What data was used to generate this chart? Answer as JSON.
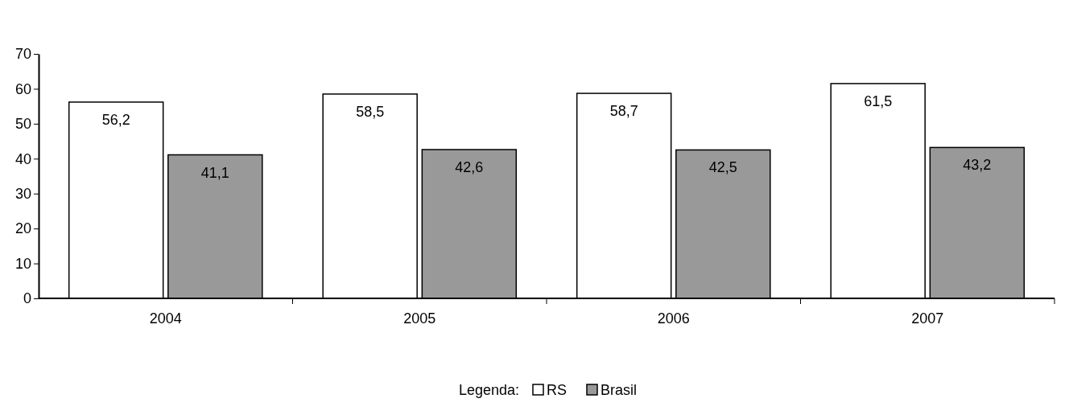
{
  "chart_data": {
    "type": "bar",
    "categories": [
      "2004",
      "2005",
      "2006",
      "2007"
    ],
    "series": [
      {
        "name": "RS",
        "color": "#ffffff",
        "values": [
          56.2,
          58.5,
          58.7,
          61.5
        ],
        "value_labels": [
          "56,2",
          "58,5",
          "58,7",
          "61,5"
        ]
      },
      {
        "name": "Brasil",
        "color": "#999999",
        "values": [
          41.1,
          42.6,
          42.5,
          43.2
        ],
        "value_labels": [
          "41,1",
          "42,6",
          "42,5",
          "43,2"
        ]
      }
    ],
    "ylim": [
      0,
      70
    ],
    "yticks": [
      0,
      10,
      20,
      30,
      40,
      50,
      60,
      70
    ],
    "legend": "bottom",
    "legend_title": "Legenda:"
  }
}
